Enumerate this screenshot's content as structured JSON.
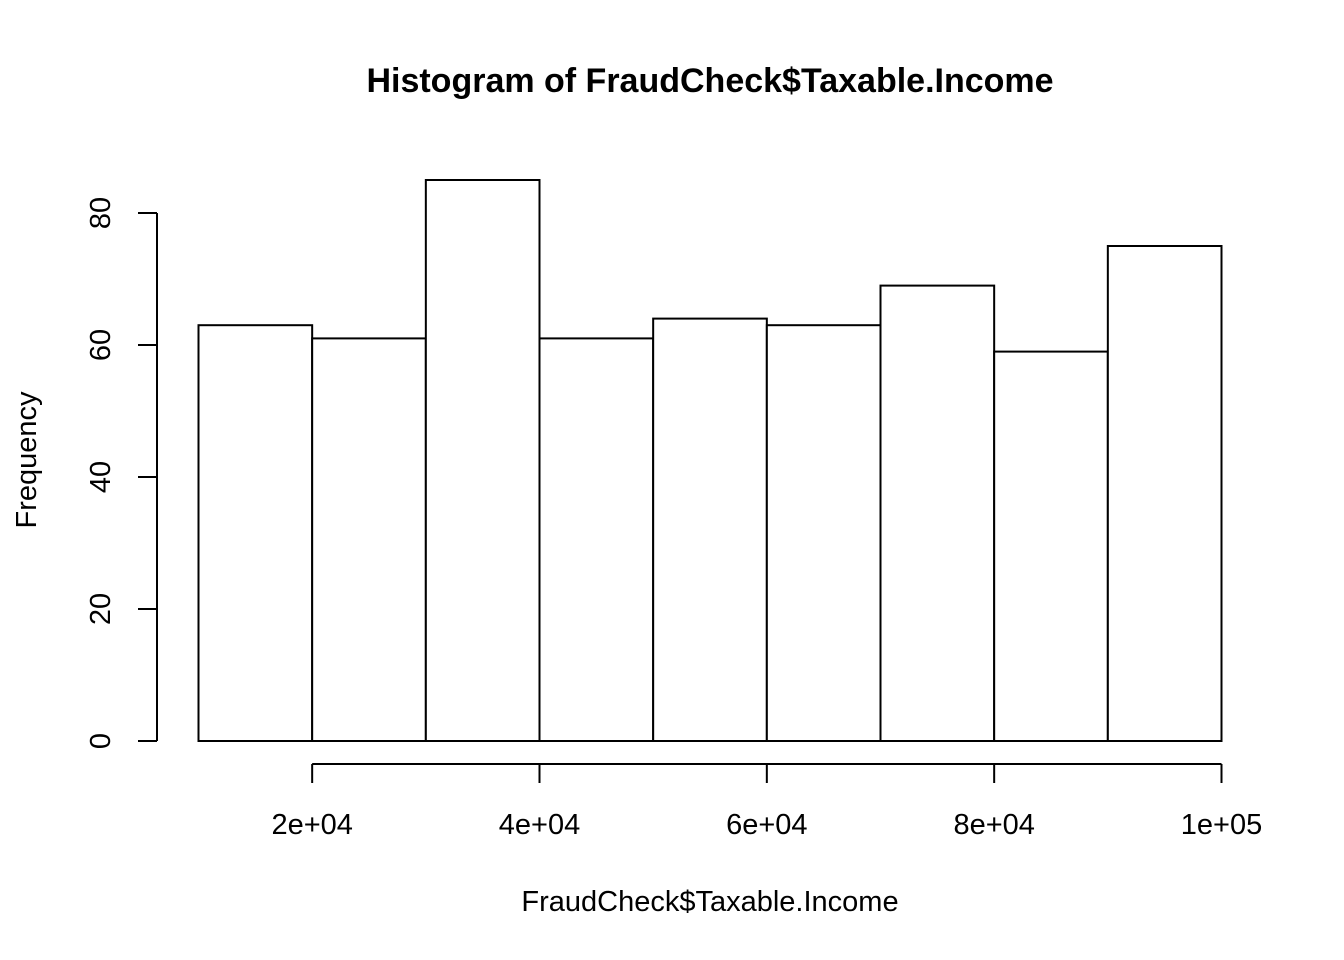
{
  "chart_data": {
    "type": "bar",
    "title": "Histogram of FraudCheck$Taxable.Income",
    "xlabel": "FraudCheck$Taxable.Income",
    "ylabel": "Frequency",
    "bins": [
      {
        "start": 10000,
        "end": 20000,
        "count": 63
      },
      {
        "start": 20000,
        "end": 30000,
        "count": 61
      },
      {
        "start": 30000,
        "end": 40000,
        "count": 85
      },
      {
        "start": 40000,
        "end": 50000,
        "count": 61
      },
      {
        "start": 50000,
        "end": 60000,
        "count": 64
      },
      {
        "start": 60000,
        "end": 70000,
        "count": 63
      },
      {
        "start": 70000,
        "end": 80000,
        "count": 69
      },
      {
        "start": 80000,
        "end": 90000,
        "count": 59
      },
      {
        "start": 90000,
        "end": 100000,
        "count": 75
      }
    ],
    "x_ticks": [
      {
        "value": 20000,
        "label": "2e+04"
      },
      {
        "value": 40000,
        "label": "4e+04"
      },
      {
        "value": 60000,
        "label": "6e+04"
      },
      {
        "value": 80000,
        "label": "8e+04"
      },
      {
        "value": 100000,
        "label": "1e+05"
      }
    ],
    "y_ticks": [
      {
        "value": 0,
        "label": "0"
      },
      {
        "value": 20,
        "label": "20"
      },
      {
        "value": 40,
        "label": "40"
      },
      {
        "value": 60,
        "label": "60"
      },
      {
        "value": 80,
        "label": "80"
      }
    ],
    "xlim": [
      10000,
      100000
    ],
    "ylim": [
      0,
      85
    ],
    "grid": false,
    "legend": "none",
    "bar_fill": "#ffffff",
    "bar_stroke": "#000000"
  }
}
